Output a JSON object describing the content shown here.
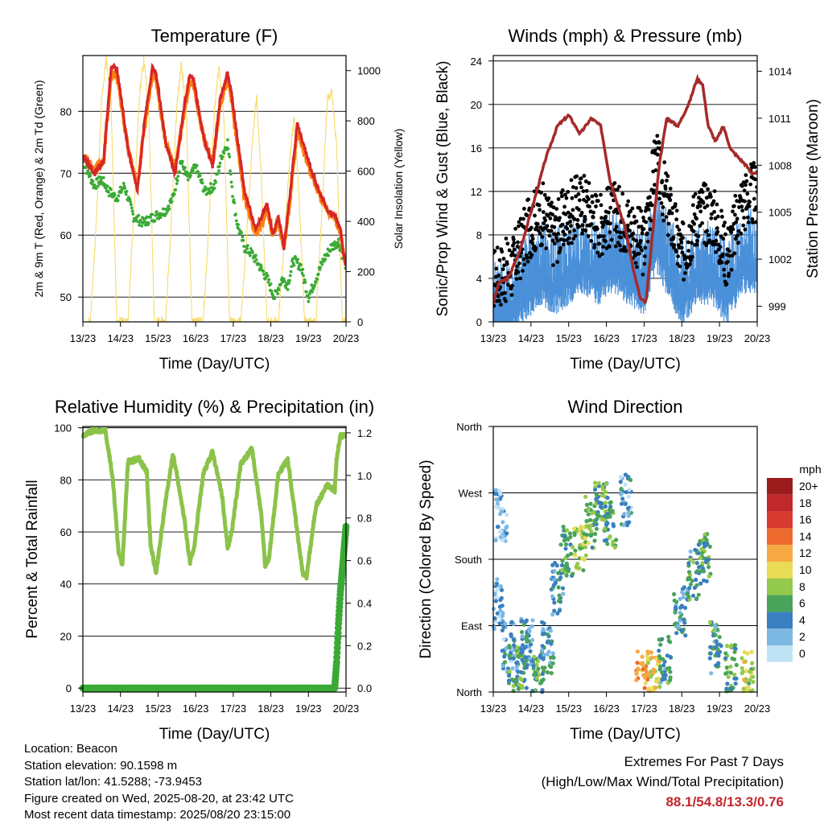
{
  "chart_data": [
    {
      "type": "line",
      "title": "Temperature (F)",
      "xlabel": "Time (Day/UTC)",
      "ylabel": "2m & 9m T (Red, Orange) & 2m Td (Green)",
      "ylabel_right": "Solar Insolation (Yellow)",
      "x_ticks": [
        "13/23",
        "14/23",
        "15/23",
        "16/23",
        "17/23",
        "18/23",
        "19/23",
        "20/23"
      ],
      "y_ticks": [
        "50",
        "60",
        "70",
        "80"
      ],
      "y_ticks_right": [
        "0",
        "200",
        "400",
        "600",
        "800",
        "1000"
      ],
      "xlim": [
        0,
        7
      ],
      "ylim": [
        46,
        89
      ],
      "ylim_right": [
        0,
        1060
      ],
      "grid": true,
      "series": [
        {
          "name": "2m T",
          "color": "#d62728",
          "axis": "left",
          "x": [
            0,
            0.3,
            0.55,
            0.75,
            0.9,
            1.0,
            1.2,
            1.45,
            1.65,
            1.85,
            1.95,
            2.2,
            2.45,
            2.7,
            2.85,
            2.95,
            3.2,
            3.45,
            3.65,
            3.85,
            3.95,
            4.3,
            4.6,
            4.9,
            5.05,
            5.2,
            5.35,
            5.5,
            5.7,
            5.95,
            6.1,
            6.3,
            6.5,
            6.7,
            6.85,
            6.93,
            7.0
          ],
          "y": [
            73,
            70,
            72,
            87,
            87,
            83,
            74,
            67,
            79,
            87,
            86,
            75,
            70,
            81,
            86,
            85,
            76,
            71,
            82,
            86,
            83,
            67,
            61,
            65,
            60,
            63,
            58,
            66,
            78,
            73,
            70,
            67,
            64,
            63,
            61,
            57,
            55
          ]
        },
        {
          "name": "9m T",
          "color": "#ff7f0e",
          "axis": "left",
          "x": [
            0,
            0.3,
            0.55,
            0.75,
            0.9,
            1.0,
            1.2,
            1.45,
            1.65,
            1.85,
            1.95,
            2.2,
            2.45,
            2.7,
            2.85,
            2.95,
            3.2,
            3.45,
            3.65,
            3.85,
            3.95,
            4.3,
            4.6,
            4.9,
            5.05,
            5.2,
            5.35,
            5.5,
            5.7,
            5.95,
            6.1,
            6.3,
            6.5,
            6.7,
            6.85,
            6.93,
            7.0
          ],
          "y": [
            73,
            70.5,
            72,
            86,
            86,
            82,
            74,
            68,
            78,
            86,
            85,
            75,
            70.5,
            80,
            85,
            84,
            76,
            71.5,
            81,
            85,
            82,
            66,
            60,
            64,
            60,
            62,
            58,
            65,
            77,
            72,
            69.5,
            66.5,
            64,
            63,
            60.5,
            57,
            55
          ]
        },
        {
          "name": "2m Td",
          "color": "#3aaa35",
          "axis": "left",
          "x": [
            0,
            0.3,
            0.5,
            0.7,
            0.9,
            1.1,
            1.35,
            1.6,
            1.9,
            2.2,
            2.4,
            2.6,
            2.8,
            3.0,
            3.25,
            3.5,
            3.7,
            3.85,
            4.0,
            4.1,
            4.3,
            4.5,
            4.7,
            4.9,
            5.1,
            5.3,
            5.45,
            5.6,
            5.8,
            6.0,
            6.2,
            6.4,
            6.6,
            6.8,
            7.0
          ],
          "y": [
            72,
            68,
            69,
            67,
            66,
            68,
            63,
            62,
            63,
            64,
            66,
            72,
            69,
            71,
            67,
            68,
            73,
            75,
            66,
            62,
            58,
            57,
            55,
            53,
            50,
            53,
            52,
            56,
            55,
            50,
            53,
            56,
            58,
            59,
            55
          ]
        },
        {
          "name": "Solar Insolation",
          "color": "#f7dc6f",
          "axis": "right",
          "x": [
            0.2,
            0.35,
            0.5,
            0.62,
            0.75,
            0.9,
            1.2,
            1.35,
            1.5,
            1.62,
            1.75,
            1.9,
            2.2,
            2.35,
            2.5,
            2.62,
            2.75,
            2.9,
            3.2,
            3.35,
            3.5,
            3.62,
            3.75,
            3.9,
            4.2,
            4.35,
            4.5,
            4.62,
            4.75,
            4.9,
            5.2,
            5.35,
            5.5,
            5.62,
            5.75,
            5.9,
            6.2,
            6.35,
            6.5,
            6.62,
            6.75,
            6.9
          ],
          "y": [
            0,
            380,
            880,
            1050,
            880,
            0,
            0,
            420,
            900,
            1040,
            860,
            0,
            0,
            400,
            860,
            1030,
            840,
            0,
            0,
            380,
            840,
            1020,
            820,
            0,
            0,
            320,
            700,
            900,
            560,
            0,
            0,
            300,
            640,
            820,
            500,
            0,
            0,
            420,
            880,
            920,
            700,
            0
          ]
        }
      ]
    },
    {
      "type": "scatter",
      "title": "Winds (mph) & Pressure (mb)",
      "xlabel": "Time (Day/UTC)",
      "ylabel": "Sonic/Prop Wind & Gust (Blue, Black)",
      "ylabel_right": "Station Pressure (Maroon)",
      "x_ticks": [
        "13/23",
        "14/23",
        "15/23",
        "16/23",
        "17/23",
        "18/23",
        "19/23",
        "20/23"
      ],
      "y_ticks": [
        "0",
        "4",
        "8",
        "12",
        "16",
        "20",
        "24"
      ],
      "y_ticks_right": [
        "999",
        "1002",
        "1005",
        "1008",
        "1011",
        "1014"
      ],
      "xlim": [
        0,
        7
      ],
      "ylim": [
        0,
        24.5
      ],
      "ylim_right": [
        998,
        1015
      ],
      "grid": true,
      "series": [
        {
          "name": "Sonic/Prop Wind",
          "color": "#4a90d9",
          "axis": "left",
          "x": [
            0,
            0.5,
            1.0,
            1.3,
            1.6,
            2.0,
            2.4,
            2.8,
            3.2,
            3.6,
            4.0,
            4.3,
            4.6,
            5.0,
            5.4,
            5.8,
            6.2,
            6.6,
            7.0
          ],
          "y": [
            2,
            3,
            5,
            6,
            5,
            6,
            7,
            6,
            7,
            6,
            5,
            9,
            7,
            4,
            6,
            6,
            4,
            7,
            7
          ]
        },
        {
          "name": "Gust",
          "color": "#000000",
          "axis": "left",
          "x": [
            0,
            0.5,
            1.0,
            1.3,
            1.6,
            2.0,
            2.4,
            2.8,
            3.2,
            3.6,
            4.0,
            4.3,
            4.6,
            5.0,
            5.4,
            5.8,
            6.2,
            6.6,
            7.0
          ],
          "y": [
            4,
            5,
            9,
            10,
            8,
            10,
            11,
            9,
            10,
            9,
            7,
            15,
            11,
            6,
            10,
            10,
            6,
            11,
            12
          ]
        },
        {
          "name": "Station Pressure",
          "color": "#a52a2a",
          "axis": "right",
          "x": [
            0,
            0.15,
            0.4,
            0.7,
            1.0,
            1.4,
            1.7,
            2.0,
            2.3,
            2.6,
            2.85,
            3.1,
            3.3,
            3.5,
            3.7,
            3.9,
            4.05,
            4.2,
            4.4,
            4.6,
            4.9,
            5.2,
            5.4,
            5.55,
            5.7,
            5.9,
            6.1,
            6.3,
            6.5,
            6.7,
            6.85,
            7.0
          ],
          "y": [
            999.2,
            1000.5,
            1000.8,
            1002.5,
            1005,
            1008.5,
            1010.5,
            1011.2,
            1010,
            1011,
            1010.5,
            1007,
            1005.5,
            1004,
            1001.5,
            999.5,
            999.2,
            1003,
            1008,
            1011,
            1010.5,
            1012,
            1013.5,
            1013.2,
            1010.5,
            1009.5,
            1010.5,
            1009,
            1008.5,
            1008,
            1007.5,
            1007.5
          ]
        }
      ]
    },
    {
      "type": "line",
      "title": "Relative Humidity (%) & Precipitation (in)",
      "xlabel": "Time (Day/UTC)",
      "ylabel": "Percent & Total Rainfall",
      "x_ticks": [
        "13/23",
        "14/23",
        "15/23",
        "16/23",
        "17/23",
        "18/23",
        "19/23",
        "20/23"
      ],
      "y_ticks": [
        "0",
        "20",
        "40",
        "60",
        "80",
        "100"
      ],
      "y_ticks_right": [
        "0.0",
        "0.2",
        "0.4",
        "0.6",
        "0.8",
        "1.0",
        "1.2"
      ],
      "xlim": [
        0,
        7
      ],
      "ylim": [
        -1.5,
        100.5
      ],
      "ylim_right": [
        -0.018,
        1.23
      ],
      "grid": true,
      "series": [
        {
          "name": "Relative Humidity",
          "color": "#8bc34a",
          "axis": "left",
          "x": [
            0,
            0.3,
            0.6,
            0.8,
            0.95,
            1.05,
            1.2,
            1.5,
            1.7,
            1.8,
            1.95,
            2.2,
            2.4,
            2.7,
            2.85,
            2.95,
            3.2,
            3.45,
            3.7,
            3.85,
            3.95,
            4.2,
            4.5,
            4.75,
            4.85,
            4.95,
            5.2,
            5.45,
            5.65,
            5.85,
            5.95,
            6.2,
            6.5,
            6.7,
            6.75,
            6.85,
            7.0
          ],
          "y": [
            97,
            99,
            99,
            80,
            52,
            47,
            87,
            88,
            83,
            55,
            44,
            72,
            90,
            65,
            48,
            53,
            82,
            91,
            74,
            54,
            59,
            86,
            92,
            66,
            47,
            50,
            82,
            88,
            66,
            44,
            43,
            70,
            78,
            76,
            88,
            97,
            97
          ]
        },
        {
          "name": "Total Precipitation",
          "color": "#3aaa35",
          "axis": "right",
          "x": [
            0,
            6.7,
            6.75,
            6.8,
            6.85,
            6.9,
            7.0
          ],
          "y": [
            0,
            0,
            0.12,
            0.3,
            0.45,
            0.55,
            0.76
          ]
        }
      ]
    },
    {
      "type": "scatter",
      "title": "Wind Direction",
      "xlabel": "Time (Day/UTC)",
      "ylabel": "Direction (Colored By Speed)",
      "x_ticks": [
        "13/23",
        "14/23",
        "15/23",
        "16/23",
        "17/23",
        "18/23",
        "19/23",
        "20/23"
      ],
      "y_ticks": [
        "North",
        "East",
        "South",
        "West",
        "North"
      ],
      "ylim": [
        0,
        360
      ],
      "legend_title": "mph",
      "legend_labels": [
        "20+",
        "18",
        "16",
        "14",
        "12",
        "10",
        "8",
        "6",
        "4",
        "2",
        "0"
      ],
      "legend_colors": [
        "#9b1c1c",
        "#c0282d",
        "#d83a30",
        "#ee6a2e",
        "#f6a942",
        "#e8dc55",
        "#93c94d",
        "#4aa35a",
        "#3a7fbf",
        "#7db8e3",
        "#bfe3f5"
      ],
      "legend_placement": "right",
      "clusters": [
        {
          "x": 0.1,
          "dir": 120,
          "speed": 2
        },
        {
          "x": 0.2,
          "dir": 240,
          "speed": 2
        },
        {
          "x": 0.4,
          "dir": 60,
          "speed": 3
        },
        {
          "x": 0.55,
          "dir": 30,
          "speed": 5
        },
        {
          "x": 0.75,
          "dir": 20,
          "speed": 6
        },
        {
          "x": 0.9,
          "dir": 70,
          "speed": 4
        },
        {
          "x": 1.2,
          "dir": 20,
          "speed": 6
        },
        {
          "x": 1.45,
          "dir": 60,
          "speed": 4
        },
        {
          "x": 1.7,
          "dir": 140,
          "speed": 4
        },
        {
          "x": 1.95,
          "dir": 190,
          "speed": 6
        },
        {
          "x": 2.3,
          "dir": 200,
          "speed": 8
        },
        {
          "x": 2.6,
          "dir": 230,
          "speed": 7
        },
        {
          "x": 2.85,
          "dir": 250,
          "speed": 6
        },
        {
          "x": 3.1,
          "dir": 230,
          "speed": 6
        },
        {
          "x": 3.5,
          "dir": 260,
          "speed": 3
        },
        {
          "x": 3.95,
          "dir": 20,
          "speed": 12
        },
        {
          "x": 4.25,
          "dir": 20,
          "speed": 10
        },
        {
          "x": 4.55,
          "dir": 40,
          "speed": 5
        },
        {
          "x": 4.95,
          "dir": 110,
          "speed": 4
        },
        {
          "x": 5.3,
          "dir": 160,
          "speed": 5
        },
        {
          "x": 5.6,
          "dir": 180,
          "speed": 6
        },
        {
          "x": 5.9,
          "dir": 60,
          "speed": 5
        },
        {
          "x": 6.3,
          "dir": 30,
          "speed": 6
        },
        {
          "x": 6.75,
          "dir": 20,
          "speed": 9
        }
      ]
    }
  ],
  "info": {
    "location": "Location: Beacon",
    "elevation": "Station elevation: 90.1598 m",
    "latlon": "Station lat/lon: 41.5288; -73.9453",
    "created": "Figure created on Wed, 2025-08-20, at 23:42 UTC",
    "recent": "Most recent data timestamp: 2025/08/20 23:15:00"
  },
  "extremes": {
    "title": "Extremes For Past 7 Days",
    "subtitle": "(High/Low/Max Wind/Total Precipitation)",
    "values": "88.1/54.8/13.3/0.76"
  }
}
